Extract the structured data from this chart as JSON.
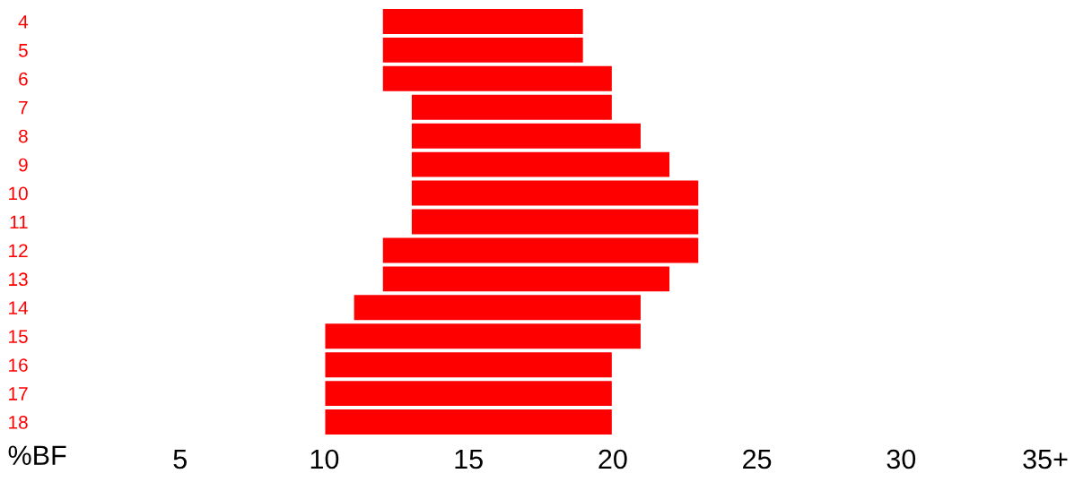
{
  "chart_data": {
    "type": "bar",
    "orientation": "horizontal",
    "xlabel": "%BF",
    "categories": [
      "4",
      "5",
      "6",
      "7",
      "8",
      "9",
      "10",
      "11",
      "12",
      "13",
      "14",
      "15",
      "16",
      "17",
      "18"
    ],
    "base": [
      12,
      12,
      12,
      13,
      13,
      13,
      13,
      13,
      12,
      12,
      11,
      10,
      10,
      10,
      10
    ],
    "values": [
      7,
      7,
      8,
      7,
      8,
      9,
      10,
      10,
      11,
      10,
      10,
      11,
      10,
      10,
      10
    ],
    "color": "#ff0000",
    "xlim": [
      0,
      35
    ],
    "xticks": [
      5,
      10,
      15,
      20,
      25,
      30,
      {
        "value": 35,
        "label": "35+"
      }
    ],
    "grid": false,
    "legend": false
  }
}
